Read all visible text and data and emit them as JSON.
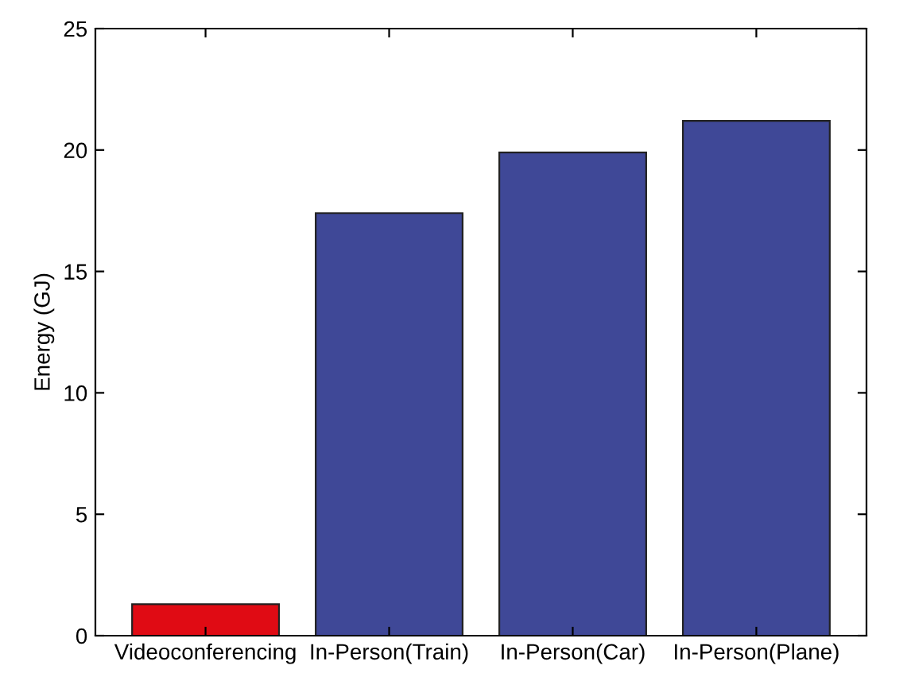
{
  "chart_data": {
    "type": "bar",
    "ylabel": "Energy (GJ)",
    "categories": [
      "Videoconferencing",
      "In-Person(Train)",
      "In-Person(Car)",
      "In-Person(Plane)"
    ],
    "values": [
      1.3,
      17.4,
      19.9,
      21.2
    ],
    "colors": [
      "#e00b14",
      "#3f4897",
      "#3f4897",
      "#3f4897"
    ],
    "ylim": [
      0,
      25
    ],
    "yticks": [
      0,
      5,
      10,
      15,
      20,
      25
    ],
    "grid": false
  }
}
